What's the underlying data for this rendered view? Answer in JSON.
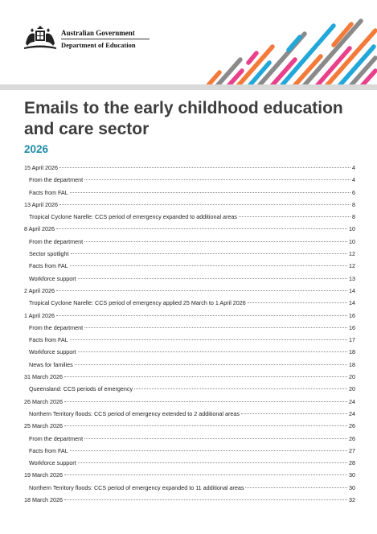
{
  "header": {
    "gov_line1": "Australian Government",
    "gov_line2": "Department of Education"
  },
  "title": "Emails to the early childhood education and care sector",
  "year": "2026",
  "toc": [
    {
      "level": 1,
      "text": "15 April 2026",
      "page": "4"
    },
    {
      "level": 2,
      "text": "From the department",
      "page": "4"
    },
    {
      "level": 2,
      "text": "Facts from FAL",
      "page": "6"
    },
    {
      "level": 1,
      "text": "13 April 2026",
      "page": "8"
    },
    {
      "level": 2,
      "text": "Tropical Cyclone Narelle: CCS period of emergency expanded to additional areas",
      "page": "8"
    },
    {
      "level": 1,
      "text": "8 April 2026",
      "page": "10"
    },
    {
      "level": 2,
      "text": "From the department",
      "page": "10"
    },
    {
      "level": 2,
      "text": "Sector spotlight",
      "page": "12"
    },
    {
      "level": 2,
      "text": "Facts from FAL",
      "page": "12"
    },
    {
      "level": 2,
      "text": "Workforce support",
      "page": "13"
    },
    {
      "level": 1,
      "text": "2 April 2026",
      "page": "14"
    },
    {
      "level": 2,
      "text": "Tropical Cyclone Narelle: CCS period of emergency applied 25 March to 1 April 2026",
      "page": "14"
    },
    {
      "level": 1,
      "text": "1 April 2026",
      "page": "16"
    },
    {
      "level": 2,
      "text": "From the department",
      "page": "16"
    },
    {
      "level": 2,
      "text": "Facts from FAL",
      "page": "17"
    },
    {
      "level": 2,
      "text": "Workforce support",
      "page": "18"
    },
    {
      "level": 2,
      "text": "News for families",
      "page": "18"
    },
    {
      "level": 1,
      "text": "31 March 2026",
      "page": "20"
    },
    {
      "level": 2,
      "text": "Queensland: CCS periods of emergency",
      "page": "20"
    },
    {
      "level": 1,
      "text": "26 March 2026",
      "page": "24"
    },
    {
      "level": 2,
      "text": "Northern Territory floods: CCS period of emergency extended to 2 additional areas",
      "page": "24"
    },
    {
      "level": 1,
      "text": "25 March 2026",
      "page": "26"
    },
    {
      "level": 2,
      "text": "From the department",
      "page": "26"
    },
    {
      "level": 2,
      "text": "Facts from FAL",
      "page": "27"
    },
    {
      "level": 2,
      "text": "Workforce support",
      "page": "28"
    },
    {
      "level": 1,
      "text": "19 March 2026",
      "page": "30"
    },
    {
      "level": 2,
      "text": "Northern Territory floods: CCS period of emergency expanded to 11 additional areas",
      "page": "30"
    },
    {
      "level": 1,
      "text": "18 March 2026",
      "page": "32"
    }
  ],
  "colors": {
    "accent": "#1d8ba8",
    "stripe_orange": "#f47a3a",
    "stripe_blue": "#22a7d9",
    "stripe_pink": "#e8408a",
    "stripe_gray": "#8a8a8a"
  }
}
